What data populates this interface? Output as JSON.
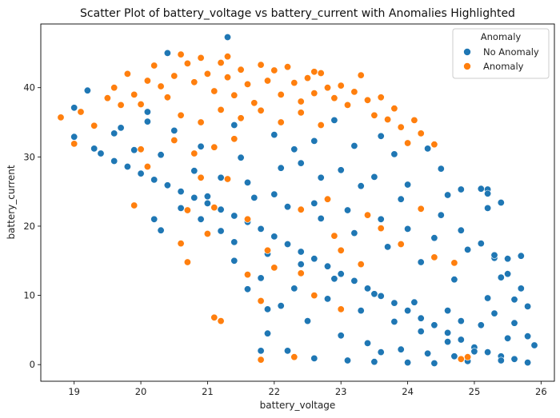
{
  "chart_data": {
    "type": "scatter",
    "title": "Scatter Plot of battery_voltage vs battery_current with Anomalies Highlighted",
    "xlabel": "battery_voltage",
    "ylabel": "battery_current",
    "xlim": [
      18.5,
      26.2
    ],
    "ylim": [
      -2.4,
      49.2
    ],
    "xticks": [
      19,
      20,
      21,
      22,
      23,
      24,
      25,
      26
    ],
    "yticks": [
      0,
      10,
      20,
      30,
      40
    ],
    "grid": false,
    "legend": {
      "title": "Anomaly",
      "placement": "top-right"
    },
    "series": [
      {
        "name": "No Anomaly",
        "color": "#1f77b4",
        "points": [
          [
            19.0,
            32.9
          ],
          [
            19.0,
            37.1
          ],
          [
            19.2,
            39.6
          ],
          [
            19.3,
            31.2
          ],
          [
            19.4,
            30.5
          ],
          [
            19.6,
            29.4
          ],
          [
            19.8,
            28.6
          ],
          [
            20.0,
            27.6
          ],
          [
            20.2,
            26.7
          ],
          [
            20.4,
            25.9
          ],
          [
            20.6,
            25.0
          ],
          [
            20.8,
            24.1
          ],
          [
            21.0,
            23.3
          ],
          [
            21.2,
            22.4
          ],
          [
            21.4,
            21.5
          ],
          [
            21.6,
            20.6
          ],
          [
            21.8,
            19.6
          ],
          [
            22.0,
            18.5
          ],
          [
            22.2,
            17.4
          ],
          [
            22.4,
            16.3
          ],
          [
            22.6,
            15.3
          ],
          [
            22.8,
            14.2
          ],
          [
            23.0,
            13.1
          ],
          [
            23.2,
            12.1
          ],
          [
            23.4,
            11.0
          ],
          [
            23.6,
            9.9
          ],
          [
            23.8,
            8.9
          ],
          [
            24.0,
            7.8
          ],
          [
            24.2,
            6.7
          ],
          [
            24.4,
            5.7
          ],
          [
            24.6,
            4.6
          ],
          [
            24.8,
            3.6
          ],
          [
            25.0,
            2.5
          ],
          [
            25.2,
            1.8
          ],
          [
            25.4,
            1.2
          ],
          [
            25.6,
            0.8
          ],
          [
            25.8,
            0.3
          ],
          [
            21.3,
            47.3
          ],
          [
            20.4,
            45.0
          ],
          [
            20.1,
            36.5
          ],
          [
            20.5,
            33.8
          ],
          [
            20.9,
            31.5
          ],
          [
            21.5,
            29.9
          ],
          [
            22.1,
            28.4
          ],
          [
            22.7,
            27.0
          ],
          [
            23.3,
            25.8
          ],
          [
            23.9,
            23.9
          ],
          [
            24.5,
            21.6
          ],
          [
            24.8,
            19.4
          ],
          [
            25.1,
            17.5
          ],
          [
            25.3,
            15.4
          ],
          [
            25.5,
            13.1
          ],
          [
            25.7,
            11.0
          ],
          [
            25.8,
            8.4
          ],
          [
            25.1,
            25.4
          ],
          [
            25.2,
            25.3
          ],
          [
            25.2,
            24.7
          ],
          [
            25.4,
            23.4
          ],
          [
            25.2,
            22.6
          ],
          [
            24.8,
            25.3
          ],
          [
            25.3,
            15.8
          ],
          [
            25.5,
            15.3
          ],
          [
            25.7,
            15.7
          ],
          [
            24.3,
            31.2
          ],
          [
            24.5,
            28.3
          ],
          [
            23.6,
            33.0
          ],
          [
            22.9,
            35.3
          ],
          [
            22.3,
            31.1
          ],
          [
            21.6,
            26.3
          ],
          [
            21.2,
            27.0
          ],
          [
            20.8,
            28.0
          ],
          [
            20.3,
            30.3
          ],
          [
            19.9,
            31.0
          ],
          [
            19.6,
            33.4
          ],
          [
            19.7,
            34.2
          ],
          [
            20.1,
            35.1
          ],
          [
            21.7,
            24.1
          ],
          [
            22.2,
            22.8
          ],
          [
            22.7,
            21.1
          ],
          [
            23.2,
            19.0
          ],
          [
            23.7,
            17.0
          ],
          [
            24.2,
            14.8
          ],
          [
            24.7,
            12.3
          ],
          [
            25.2,
            9.6
          ],
          [
            25.6,
            6.0
          ],
          [
            25.9,
            2.8
          ],
          [
            21.9,
            4.5
          ],
          [
            22.2,
            2.0
          ],
          [
            22.6,
            0.9
          ],
          [
            23.1,
            0.6
          ],
          [
            23.5,
            0.4
          ],
          [
            24.0,
            0.3
          ],
          [
            24.4,
            0.2
          ],
          [
            24.9,
            0.5
          ],
          [
            25.4,
            0.6
          ],
          [
            22.1,
            8.5
          ],
          [
            22.5,
            6.3
          ],
          [
            23.0,
            4.2
          ],
          [
            23.4,
            3.1
          ],
          [
            23.9,
            2.2
          ],
          [
            24.3,
            1.6
          ],
          [
            24.7,
            1.2
          ],
          [
            21.8,
            12.5
          ],
          [
            22.3,
            11.0
          ],
          [
            22.8,
            9.5
          ],
          [
            23.3,
            7.8
          ],
          [
            23.8,
            6.2
          ],
          [
            24.2,
            4.8
          ],
          [
            24.6,
            3.3
          ],
          [
            25.0,
            1.9
          ],
          [
            21.4,
            17.7
          ],
          [
            21.9,
            16.0
          ],
          [
            22.4,
            14.5
          ],
          [
            22.9,
            12.4
          ],
          [
            23.5,
            10.2
          ],
          [
            24.1,
            9.0
          ],
          [
            24.6,
            7.8
          ],
          [
            25.1,
            5.7
          ],
          [
            25.5,
            3.8
          ],
          [
            20.6,
            22.6
          ],
          [
            20.9,
            21.0
          ],
          [
            21.2,
            19.3
          ],
          [
            22.0,
            24.6
          ],
          [
            22.6,
            23.3
          ],
          [
            23.1,
            22.3
          ],
          [
            23.6,
            21.0
          ],
          [
            24.0,
            19.6
          ],
          [
            24.4,
            18.3
          ],
          [
            24.9,
            16.6
          ],
          [
            25.4,
            12.6
          ],
          [
            25.6,
            9.4
          ],
          [
            22.4,
            29.1
          ],
          [
            23.0,
            28.1
          ],
          [
            23.5,
            27.1
          ],
          [
            24.0,
            26.0
          ],
          [
            24.6,
            24.5
          ],
          [
            22.0,
            33.2
          ],
          [
            22.6,
            32.3
          ],
          [
            23.2,
            31.6
          ],
          [
            23.8,
            30.4
          ],
          [
            21.4,
            34.6
          ],
          [
            21.0,
            24.3
          ],
          [
            20.2,
            21.0
          ],
          [
            20.3,
            19.4
          ],
          [
            21.4,
            15.0
          ],
          [
            21.6,
            10.9
          ],
          [
            21.9,
            8.0
          ],
          [
            21.8,
            2.0
          ],
          [
            23.6,
            1.8
          ],
          [
            24.8,
            6.3
          ],
          [
            25.3,
            7.4
          ],
          [
            25.8,
            4.1
          ]
        ]
      },
      {
        "name": "Anomaly",
        "color": "#ff7f0e",
        "points": [
          [
            18.8,
            35.7
          ],
          [
            19.0,
            31.9
          ],
          [
            19.1,
            36.5
          ],
          [
            19.3,
            34.5
          ],
          [
            19.5,
            38.5
          ],
          [
            19.7,
            37.5
          ],
          [
            19.8,
            42.0
          ],
          [
            19.9,
            39.0
          ],
          [
            20.0,
            37.6
          ],
          [
            20.1,
            41.0
          ],
          [
            20.2,
            43.2
          ],
          [
            20.3,
            40.2
          ],
          [
            20.4,
            38.6
          ],
          [
            20.5,
            41.7
          ],
          [
            20.6,
            44.8
          ],
          [
            20.7,
            43.5
          ],
          [
            20.8,
            40.8
          ],
          [
            20.9,
            44.3
          ],
          [
            21.0,
            42.0
          ],
          [
            21.1,
            39.5
          ],
          [
            21.2,
            43.6
          ],
          [
            21.3,
            41.5
          ],
          [
            21.4,
            38.9
          ],
          [
            21.5,
            42.6
          ],
          [
            21.6,
            40.5
          ],
          [
            21.7,
            37.8
          ],
          [
            21.8,
            43.3
          ],
          [
            21.9,
            41.0
          ],
          [
            22.0,
            42.5
          ],
          [
            22.1,
            39.0
          ],
          [
            22.2,
            43.0
          ],
          [
            22.3,
            40.7
          ],
          [
            22.4,
            38.0
          ],
          [
            22.5,
            41.4
          ],
          [
            22.6,
            39.2
          ],
          [
            22.7,
            42.1
          ],
          [
            22.8,
            40.0
          ],
          [
            22.9,
            38.5
          ],
          [
            23.0,
            40.3
          ],
          [
            23.1,
            37.5
          ],
          [
            23.2,
            39.4
          ],
          [
            23.3,
            41.8
          ],
          [
            23.4,
            38.2
          ],
          [
            23.5,
            36.0
          ],
          [
            23.6,
            38.6
          ],
          [
            23.7,
            35.4
          ],
          [
            23.8,
            37.0
          ],
          [
            23.9,
            34.3
          ],
          [
            24.0,
            32.0
          ],
          [
            24.1,
            35.3
          ],
          [
            24.2,
            33.4
          ],
          [
            24.4,
            31.8
          ],
          [
            20.6,
            36.0
          ],
          [
            20.9,
            35.0
          ],
          [
            21.2,
            36.8
          ],
          [
            21.5,
            35.6
          ],
          [
            21.8,
            36.7
          ],
          [
            22.1,
            35.0
          ],
          [
            22.4,
            36.4
          ],
          [
            22.7,
            34.6
          ],
          [
            20.5,
            32.4
          ],
          [
            20.8,
            30.5
          ],
          [
            21.1,
            31.4
          ],
          [
            21.4,
            32.6
          ],
          [
            20.9,
            27.0
          ],
          [
            21.3,
            26.8
          ],
          [
            20.7,
            22.3
          ],
          [
            20.6,
            17.5
          ],
          [
            20.7,
            14.8
          ],
          [
            21.0,
            18.9
          ],
          [
            21.2,
            6.3
          ],
          [
            21.1,
            6.8
          ],
          [
            21.6,
            13.0
          ],
          [
            21.8,
            9.2
          ],
          [
            22.0,
            14.0
          ],
          [
            22.6,
            10.0
          ],
          [
            23.0,
            8.0
          ],
          [
            23.3,
            14.5
          ],
          [
            22.4,
            22.4
          ],
          [
            22.9,
            18.6
          ],
          [
            23.6,
            19.7
          ],
          [
            23.9,
            17.4
          ],
          [
            24.4,
            15.5
          ],
          [
            24.7,
            14.7
          ],
          [
            21.9,
            16.5
          ],
          [
            22.4,
            13.2
          ],
          [
            21.1,
            22.7
          ],
          [
            21.6,
            21.0
          ],
          [
            21.8,
            0.7
          ],
          [
            22.3,
            1.1
          ],
          [
            24.9,
            1.1
          ],
          [
            24.8,
            0.8
          ],
          [
            23.0,
            16.5
          ],
          [
            24.2,
            22.5
          ],
          [
            22.8,
            23.9
          ],
          [
            23.4,
            21.6
          ],
          [
            19.6,
            40.0
          ],
          [
            21.3,
            44.5
          ],
          [
            22.6,
            42.3
          ],
          [
            19.9,
            23.0
          ],
          [
            20.0,
            31.1
          ],
          [
            20.1,
            28.6
          ]
        ]
      }
    ]
  }
}
